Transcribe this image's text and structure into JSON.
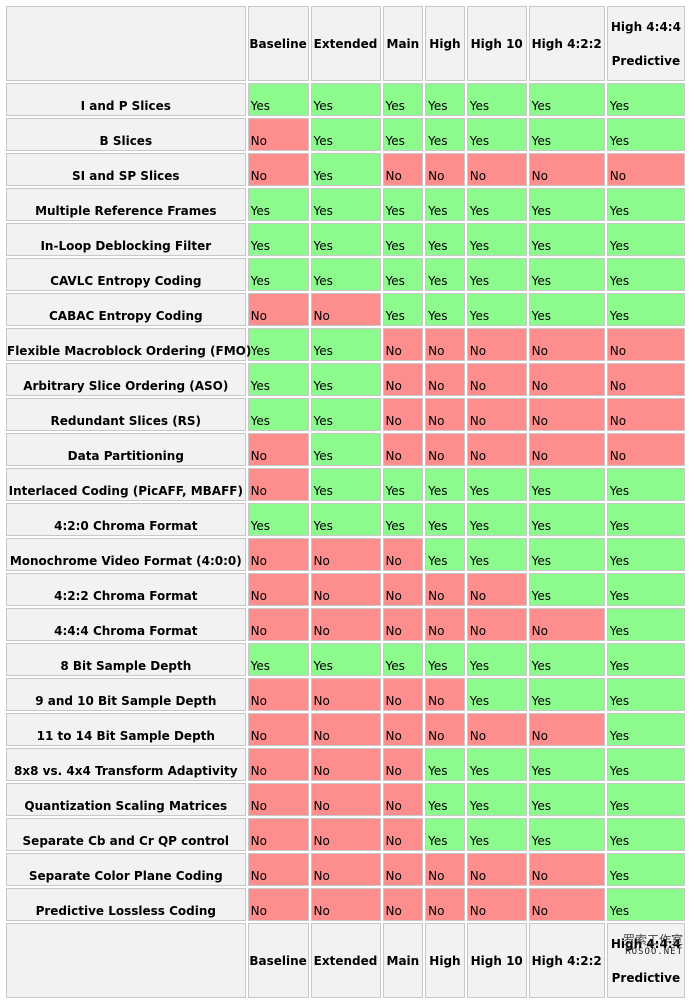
{
  "table": {
    "profiles": [
      "Baseline",
      "Extended",
      "Main",
      "High",
      "High 10",
      "High 4:2:2",
      "High 4:4:4 Predictive"
    ],
    "rows": [
      {
        "feature": "I and P Slices",
        "values": [
          "Yes",
          "Yes",
          "Yes",
          "Yes",
          "Yes",
          "Yes",
          "Yes"
        ]
      },
      {
        "feature": "B Slices",
        "values": [
          "No",
          "Yes",
          "Yes",
          "Yes",
          "Yes",
          "Yes",
          "Yes"
        ]
      },
      {
        "feature": "SI and SP Slices",
        "values": [
          "No",
          "Yes",
          "No",
          "No",
          "No",
          "No",
          "No"
        ]
      },
      {
        "feature": "Multiple Reference Frames",
        "values": [
          "Yes",
          "Yes",
          "Yes",
          "Yes",
          "Yes",
          "Yes",
          "Yes"
        ]
      },
      {
        "feature": "In-Loop Deblocking Filter",
        "values": [
          "Yes",
          "Yes",
          "Yes",
          "Yes",
          "Yes",
          "Yes",
          "Yes"
        ]
      },
      {
        "feature": "CAVLC Entropy Coding",
        "values": [
          "Yes",
          "Yes",
          "Yes",
          "Yes",
          "Yes",
          "Yes",
          "Yes"
        ]
      },
      {
        "feature": "CABAC Entropy Coding",
        "values": [
          "No",
          "No",
          "Yes",
          "Yes",
          "Yes",
          "Yes",
          "Yes"
        ]
      },
      {
        "feature": "Flexible Macroblock Ordering (FMO)",
        "values": [
          "Yes",
          "Yes",
          "No",
          "No",
          "No",
          "No",
          "No"
        ]
      },
      {
        "feature": "Arbitrary Slice Ordering (ASO)",
        "values": [
          "Yes",
          "Yes",
          "No",
          "No",
          "No",
          "No",
          "No"
        ]
      },
      {
        "feature": "Redundant Slices (RS)",
        "values": [
          "Yes",
          "Yes",
          "No",
          "No",
          "No",
          "No",
          "No"
        ]
      },
      {
        "feature": "Data Partitioning",
        "values": [
          "No",
          "Yes",
          "No",
          "No",
          "No",
          "No",
          "No"
        ]
      },
      {
        "feature": "Interlaced Coding (PicAFF, MBAFF)",
        "values": [
          "No",
          "Yes",
          "Yes",
          "Yes",
          "Yes",
          "Yes",
          "Yes"
        ]
      },
      {
        "feature": "4:2:0 Chroma Format",
        "values": [
          "Yes",
          "Yes",
          "Yes",
          "Yes",
          "Yes",
          "Yes",
          "Yes"
        ]
      },
      {
        "feature": "Monochrome Video Format (4:0:0)",
        "values": [
          "No",
          "No",
          "No",
          "Yes",
          "Yes",
          "Yes",
          "Yes"
        ]
      },
      {
        "feature": "4:2:2 Chroma Format",
        "values": [
          "No",
          "No",
          "No",
          "No",
          "No",
          "Yes",
          "Yes"
        ]
      },
      {
        "feature": "4:4:4 Chroma Format",
        "values": [
          "No",
          "No",
          "No",
          "No",
          "No",
          "No",
          "Yes"
        ]
      },
      {
        "feature": "8 Bit Sample Depth",
        "values": [
          "Yes",
          "Yes",
          "Yes",
          "Yes",
          "Yes",
          "Yes",
          "Yes"
        ]
      },
      {
        "feature": "9 and 10 Bit Sample Depth",
        "values": [
          "No",
          "No",
          "No",
          "No",
          "Yes",
          "Yes",
          "Yes"
        ]
      },
      {
        "feature": "11 to 14 Bit Sample Depth",
        "values": [
          "No",
          "No",
          "No",
          "No",
          "No",
          "No",
          "Yes"
        ]
      },
      {
        "feature": "8x8 vs. 4x4 Transform Adaptivity",
        "values": [
          "No",
          "No",
          "No",
          "Yes",
          "Yes",
          "Yes",
          "Yes"
        ]
      },
      {
        "feature": "Quantization Scaling Matrices",
        "values": [
          "No",
          "No",
          "No",
          "Yes",
          "Yes",
          "Yes",
          "Yes"
        ]
      },
      {
        "feature": "Separate Cb and Cr QP control",
        "values": [
          "No",
          "No",
          "No",
          "Yes",
          "Yes",
          "Yes",
          "Yes"
        ]
      },
      {
        "feature": "Separate Color Plane Coding",
        "values": [
          "No",
          "No",
          "No",
          "No",
          "No",
          "No",
          "Yes"
        ]
      },
      {
        "feature": "Predictive Lossless Coding",
        "values": [
          "No",
          "No",
          "No",
          "No",
          "No",
          "No",
          "Yes"
        ]
      }
    ]
  },
  "watermark": {
    "line1": "罗索工作室",
    "line2": "ROSOO.NET"
  },
  "colors": {
    "yes": "#8dfa8d",
    "no": "#fe8e8e",
    "header": "#f2f2f2"
  }
}
